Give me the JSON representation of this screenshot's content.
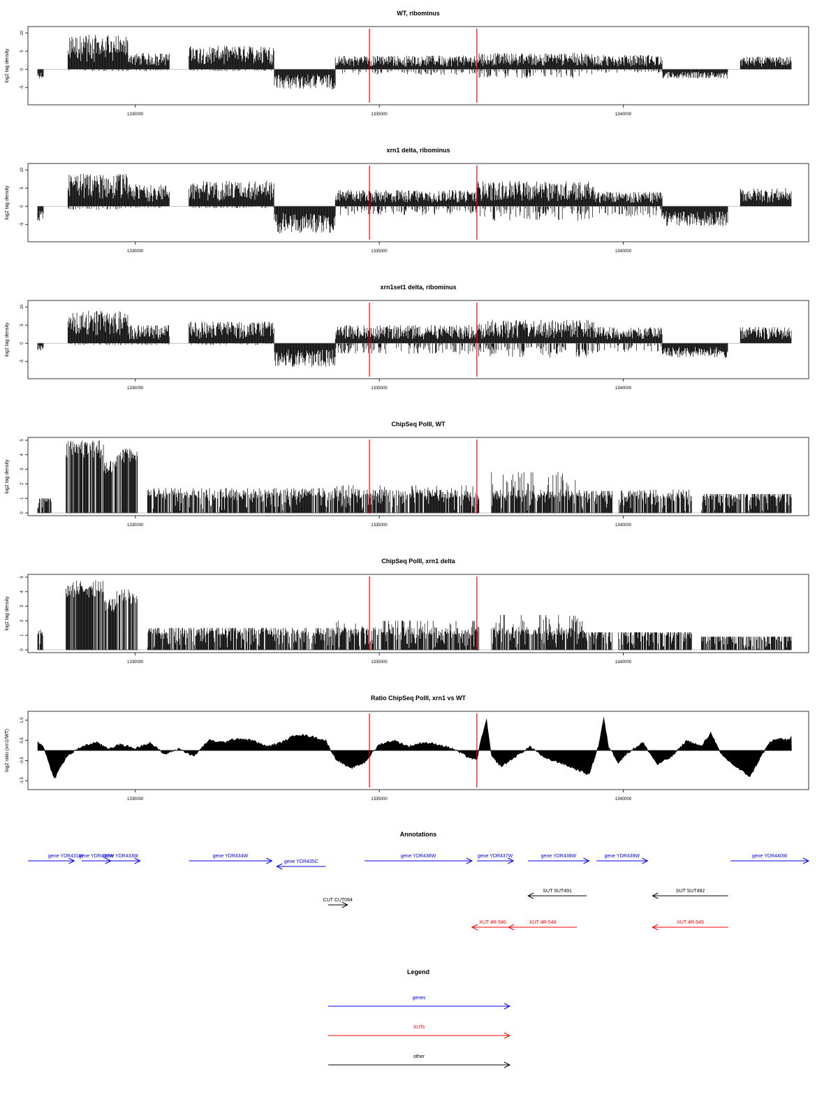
{
  "chart_data": [
    {
      "type": "bar",
      "title": "WT, ribominus",
      "ylabel": "log2 tag density",
      "ylim": [
        -9,
        11
      ],
      "yticks": [
        -5,
        0,
        5,
        10
      ],
      "xlim": [
        1327800,
        1343800
      ],
      "xticks": [
        1330000,
        1335000,
        1340000
      ],
      "marker_lines": [
        1334800,
        1337000
      ],
      "marker_color": "#ff0000",
      "series_profile": [
        {
          "start": 1328000,
          "end": 1328120,
          "top": 0,
          "bottom": -2.5
        },
        {
          "start": 1328620,
          "end": 1329850,
          "top": 9.5,
          "bottom": -0.5
        },
        {
          "start": 1329850,
          "end": 1330700,
          "top": 4.5,
          "bottom": -0.5
        },
        {
          "start": 1331100,
          "end": 1332850,
          "top": 6.5,
          "bottom": -0.5
        },
        {
          "start": 1332850,
          "end": 1334100,
          "top": 0,
          "bottom": -5.5
        },
        {
          "start": 1334100,
          "end": 1337000,
          "top": 3.8,
          "bottom": -1.5
        },
        {
          "start": 1337000,
          "end": 1339400,
          "top": 4.5,
          "bottom": -2.5
        },
        {
          "start": 1339400,
          "end": 1340800,
          "top": 4.0,
          "bottom": -1.0
        },
        {
          "start": 1340800,
          "end": 1342150,
          "top": 0,
          "bottom": -2.5
        },
        {
          "start": 1342400,
          "end": 1343450,
          "top": 3.5,
          "bottom": 0
        }
      ]
    },
    {
      "type": "bar",
      "title": "xrn1 delta, ribominus",
      "ylabel": "log2 tag density",
      "ylim": [
        -9,
        11
      ],
      "yticks": [
        -5,
        0,
        5,
        10
      ],
      "xlim": [
        1327800,
        1343800
      ],
      "xticks": [
        1330000,
        1335000,
        1340000
      ],
      "marker_lines": [
        1334800,
        1337000
      ],
      "marker_color": "#ff0000",
      "series_profile": [
        {
          "start": 1328000,
          "end": 1328120,
          "top": 0,
          "bottom": -4.5
        },
        {
          "start": 1328620,
          "end": 1329850,
          "top": 9.0,
          "bottom": -1.0
        },
        {
          "start": 1329850,
          "end": 1330700,
          "top": 6.0,
          "bottom": -0.5
        },
        {
          "start": 1331100,
          "end": 1332850,
          "top": 7.0,
          "bottom": -0.5
        },
        {
          "start": 1332850,
          "end": 1334100,
          "top": 0,
          "bottom": -7.5
        },
        {
          "start": 1334100,
          "end": 1337000,
          "top": 4.5,
          "bottom": -2.5
        },
        {
          "start": 1337000,
          "end": 1339400,
          "top": 7.0,
          "bottom": -4.0
        },
        {
          "start": 1339400,
          "end": 1340800,
          "top": 4.0,
          "bottom": -3.0
        },
        {
          "start": 1340800,
          "end": 1342150,
          "top": 0,
          "bottom": -5.5
        },
        {
          "start": 1342400,
          "end": 1343450,
          "top": 5.0,
          "bottom": 0
        }
      ]
    },
    {
      "type": "bar",
      "title": "xrn1set1 delta, ribominus",
      "ylabel": "log2 tag density",
      "ylim": [
        -9,
        11
      ],
      "yticks": [
        -5,
        0,
        5,
        10
      ],
      "xlim": [
        1327800,
        1343800
      ],
      "xticks": [
        1330000,
        1335000,
        1340000
      ],
      "marker_lines": [
        1334800,
        1337000
      ],
      "marker_color": "#ff0000",
      "series_profile": [
        {
          "start": 1328000,
          "end": 1328120,
          "top": 0,
          "bottom": -2.0
        },
        {
          "start": 1328620,
          "end": 1329850,
          "top": 9.0,
          "bottom": -0.5
        },
        {
          "start": 1329850,
          "end": 1330700,
          "top": 5.0,
          "bottom": -0.5
        },
        {
          "start": 1331100,
          "end": 1332850,
          "top": 6.0,
          "bottom": -0.5
        },
        {
          "start": 1332850,
          "end": 1334100,
          "top": 0,
          "bottom": -6.5
        },
        {
          "start": 1334100,
          "end": 1337000,
          "top": 5.0,
          "bottom": -3.0
        },
        {
          "start": 1337000,
          "end": 1339400,
          "top": 6.5,
          "bottom": -4.0
        },
        {
          "start": 1339400,
          "end": 1340800,
          "top": 4.5,
          "bottom": -2.5
        },
        {
          "start": 1340800,
          "end": 1342150,
          "top": 0,
          "bottom": -4.0
        },
        {
          "start": 1342400,
          "end": 1343450,
          "top": 4.5,
          "bottom": 0
        }
      ]
    },
    {
      "type": "bar",
      "title": "ChipSeq PolII, WT",
      "ylabel": "log2 tag density",
      "ylim": [
        0,
        5
      ],
      "yticks": [
        0,
        1,
        2,
        3,
        4,
        5
      ],
      "xlim": [
        1327800,
        1343800
      ],
      "xticks": [
        1330000,
        1335000,
        1340000
      ],
      "marker_lines": [
        1334800,
        1337000
      ],
      "marker_color": "#ff0000",
      "series_profile": [
        {
          "start": 1328000,
          "end": 1328280,
          "top": 1.0,
          "bottom": 0
        },
        {
          "start": 1328580,
          "end": 1329350,
          "top": 5.0,
          "bottom": 0
        },
        {
          "start": 1329350,
          "end": 1329620,
          "top": 3.6,
          "bottom": 0
        },
        {
          "start": 1329620,
          "end": 1330050,
          "top": 4.5,
          "bottom": 0
        },
        {
          "start": 1330250,
          "end": 1334100,
          "top": 1.7,
          "bottom": 0
        },
        {
          "start": 1334100,
          "end": 1337050,
          "top": 1.9,
          "bottom": 0
        },
        {
          "start": 1337300,
          "end": 1339200,
          "top": 2.8,
          "bottom": 0
        },
        {
          "start": 1339200,
          "end": 1339780,
          "top": 1.5,
          "bottom": 0
        },
        {
          "start": 1339900,
          "end": 1341400,
          "top": 1.6,
          "bottom": 0
        },
        {
          "start": 1341600,
          "end": 1343450,
          "top": 1.3,
          "bottom": 0
        }
      ]
    },
    {
      "type": "bar",
      "title": "ChipSeq PolII, xrn1 delta",
      "ylabel": "log2 tag density",
      "ylim": [
        0,
        5
      ],
      "yticks": [
        0,
        1,
        2,
        3,
        4,
        5
      ],
      "xlim": [
        1327800,
        1343800
      ],
      "xticks": [
        1330000,
        1335000,
        1340000
      ],
      "marker_lines": [
        1334800,
        1337000
      ],
      "marker_color": "#ff0000",
      "series_profile": [
        {
          "start": 1328000,
          "end": 1328120,
          "top": 1.5,
          "bottom": 0
        },
        {
          "start": 1328580,
          "end": 1329350,
          "top": 4.8,
          "bottom": 0
        },
        {
          "start": 1329350,
          "end": 1329620,
          "top": 3.5,
          "bottom": 0
        },
        {
          "start": 1329620,
          "end": 1330050,
          "top": 4.2,
          "bottom": 0
        },
        {
          "start": 1330250,
          "end": 1334100,
          "top": 1.5,
          "bottom": 0
        },
        {
          "start": 1334100,
          "end": 1337050,
          "top": 2.0,
          "bottom": 0
        },
        {
          "start": 1337300,
          "end": 1339200,
          "top": 2.4,
          "bottom": 0
        },
        {
          "start": 1339200,
          "end": 1339780,
          "top": 1.2,
          "bottom": 0
        },
        {
          "start": 1339900,
          "end": 1341400,
          "top": 1.2,
          "bottom": 0
        },
        {
          "start": 1341600,
          "end": 1343450,
          "top": 0.9,
          "bottom": 0
        }
      ]
    },
    {
      "type": "area",
      "title": "Ratio ChipSeq PolII, xrn1 vs WT",
      "ylabel": "log2 ratio (xrn1/WT)",
      "ylim": [
        -1.8,
        1.8
      ],
      "yticks": [
        -1.5,
        -0.5,
        0.5,
        1.5
      ],
      "xlim": [
        1327800,
        1343800
      ],
      "xticks": [
        1330000,
        1335000,
        1340000
      ],
      "marker_lines": [
        1334800,
        1337000
      ],
      "marker_color": "#ff0000",
      "x": [
        1328000,
        1328120,
        1328250,
        1328350,
        1328450,
        1328600,
        1328900,
        1329200,
        1329450,
        1329700,
        1330000,
        1330300,
        1330600,
        1330900,
        1331200,
        1331500,
        1331800,
        1332100,
        1332400,
        1332700,
        1333000,
        1333300,
        1333600,
        1333900,
        1334100,
        1334400,
        1334700,
        1335000,
        1335300,
        1335600,
        1335900,
        1336200,
        1336500,
        1336800,
        1337000,
        1337100,
        1337200,
        1337300,
        1337500,
        1337800,
        1338100,
        1338400,
        1338700,
        1339000,
        1339300,
        1339500,
        1339600,
        1339700,
        1339900,
        1340100,
        1340400,
        1340700,
        1341000,
        1341300,
        1341600,
        1341800,
        1342000,
        1342300,
        1342600,
        1342800,
        1343000,
        1343200,
        1343400,
        1343450
      ],
      "y": [
        0.4,
        0.2,
        -0.8,
        -1.4,
        -0.9,
        -0.3,
        0.2,
        0.4,
        0.1,
        0.3,
        0.1,
        0.4,
        -0.2,
        0.1,
        -0.3,
        0.5,
        0.4,
        0.6,
        0.5,
        0.2,
        0.4,
        0.8,
        0.7,
        0.5,
        -0.4,
        -0.9,
        -0.6,
        0.3,
        0.5,
        0.2,
        0.4,
        0.3,
        0.1,
        -0.3,
        -0.5,
        0.7,
        1.5,
        -0.3,
        -0.8,
        -0.3,
        0.2,
        -0.4,
        -0.6,
        -0.9,
        -1.2,
        0.3,
        1.6,
        0.2,
        -0.6,
        -0.1,
        0.4,
        -0.7,
        -0.3,
        0.5,
        0.2,
        0.9,
        -0.2,
        -0.8,
        -1.3,
        -0.4,
        0.4,
        0.6,
        0.5,
        0.7
      ]
    }
  ],
  "annotations": {
    "title": "Annotations",
    "xlim": [
      1327800,
      1343800
    ],
    "colors": {
      "genes": "#0000ff",
      "XUTs": "#ff0000",
      "other": "#000000"
    },
    "items": [
      {
        "label": "",
        "start": 1327800,
        "end": 1328480,
        "strand": "none",
        "row": 1,
        "kind": "genes"
      },
      {
        "label": "gene YDR431W",
        "start": 1328400,
        "end": 1328750,
        "strand": "+",
        "row": 1,
        "kind": "genes"
      },
      {
        "label": "gene YDR432W",
        "start": 1328900,
        "end": 1329500,
        "strand": "+",
        "row": 1,
        "kind": "genes"
      },
      {
        "label": "gene YDR433W",
        "start": 1329300,
        "end": 1330100,
        "strand": "+",
        "row": 1,
        "kind": "genes"
      },
      {
        "label": "gene YDR434W",
        "start": 1331100,
        "end": 1332800,
        "strand": "+",
        "row": 1,
        "kind": "genes"
      },
      {
        "label": "gene YDR435C",
        "start": 1332900,
        "end": 1333900,
        "strand": "-",
        "row": 2,
        "kind": "genes"
      },
      {
        "label": "gene YDR436W",
        "start": 1334700,
        "end": 1336900,
        "strand": "+",
        "row": 1,
        "kind": "genes"
      },
      {
        "label": "gene YDR437W",
        "start": 1337000,
        "end": 1337750,
        "strand": "+",
        "row": 1,
        "kind": "genes"
      },
      {
        "label": "gene YDR438W",
        "start": 1338050,
        "end": 1339300,
        "strand": "+",
        "row": 1,
        "kind": "genes"
      },
      {
        "label": "gene YDR439W",
        "start": 1339450,
        "end": 1340500,
        "strand": "+",
        "row": 1,
        "kind": "genes"
      },
      {
        "label": "gene YDR440W",
        "start": 1342200,
        "end": 1343800,
        "strand": "+",
        "row": 1,
        "kind": "genes"
      },
      {
        "label": "CUT CUT094",
        "start": 1333950,
        "end": 1334350,
        "strand": "+",
        "row": 4,
        "kind": "other"
      },
      {
        "label": "SUT SUT491",
        "start": 1338050,
        "end": 1339250,
        "strand": "-",
        "row": 3,
        "kind": "other"
      },
      {
        "label": "SUT SUT492",
        "start": 1340600,
        "end": 1342150,
        "strand": "-",
        "row": 3,
        "kind": "other"
      },
      {
        "label": "XUT 4R-546",
        "start": 1336900,
        "end": 1337750,
        "strand": "-",
        "row": 5,
        "kind": "XUTs"
      },
      {
        "label": "XUT 4R-548",
        "start": 1337650,
        "end": 1339050,
        "strand": "-",
        "row": 5,
        "kind": "XUTs"
      },
      {
        "label": "XUT 4R-549",
        "start": 1340600,
        "end": 1342150,
        "strand": "-",
        "row": 5,
        "kind": "XUTs"
      }
    ]
  },
  "legend": {
    "title": "Legend",
    "items": [
      {
        "label": "genes",
        "color": "#0000ff"
      },
      {
        "label": "XUTs",
        "color": "#ff0000"
      },
      {
        "label": "other",
        "color": "#000000"
      }
    ]
  }
}
